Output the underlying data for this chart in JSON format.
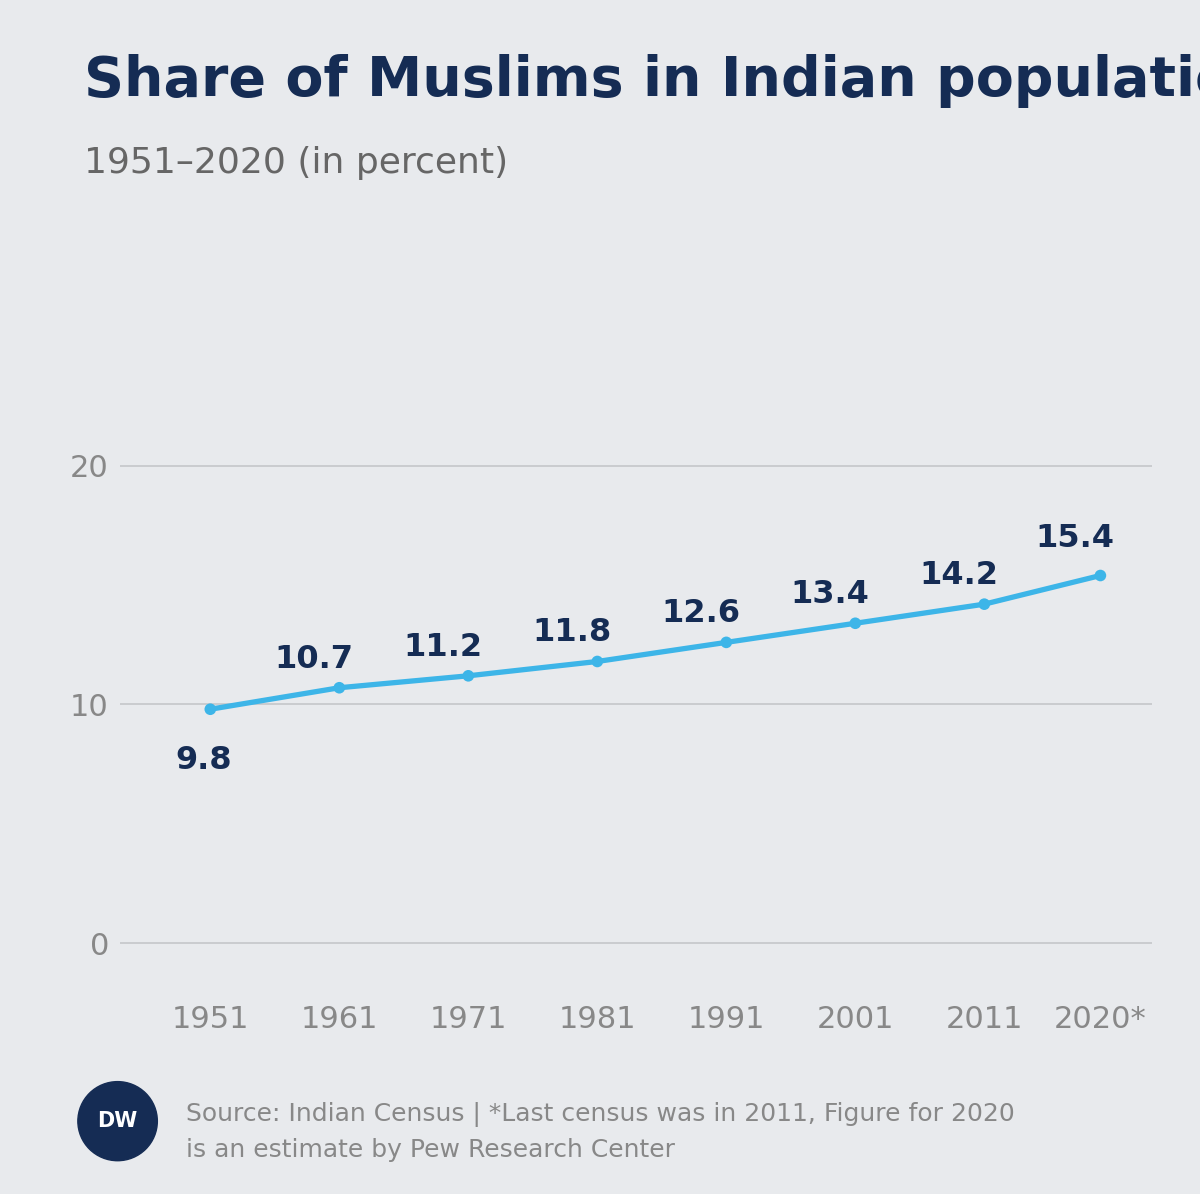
{
  "title": "Share of Muslims in Indian population",
  "subtitle": "1951–2020 (in percent)",
  "years": [
    1951,
    1961,
    1971,
    1981,
    1991,
    2001,
    2011,
    2020
  ],
  "xtick_labels": [
    "1951",
    "1961",
    "1971",
    "1981",
    "1991",
    "2001",
    "2011",
    "2020*"
  ],
  "values": [
    9.8,
    10.7,
    11.2,
    11.8,
    12.6,
    13.4,
    14.2,
    15.4
  ],
  "line_color": "#3db5e8",
  "marker_color": "#3db5e8",
  "label_color": "#152c54",
  "yticks": [
    0,
    10,
    20
  ],
  "ylim": [
    -2,
    24
  ],
  "xlim": [
    1944,
    2024
  ],
  "background_color": "#e8eaed",
  "grid_color": "#c5c7ca",
  "title_color": "#152c54",
  "subtitle_color": "#666666",
  "tick_label_color": "#888888",
  "source_text": "Source: Indian Census | *Last census was in 2011, Figure for 2020\nis an estimate by Pew Research Center",
  "title_fontsize": 40,
  "subtitle_fontsize": 26,
  "label_fontsize": 23,
  "tick_fontsize": 22,
  "source_fontsize": 18,
  "dw_logo_color": "#152c54",
  "line_width": 3.8,
  "marker_size": 70
}
